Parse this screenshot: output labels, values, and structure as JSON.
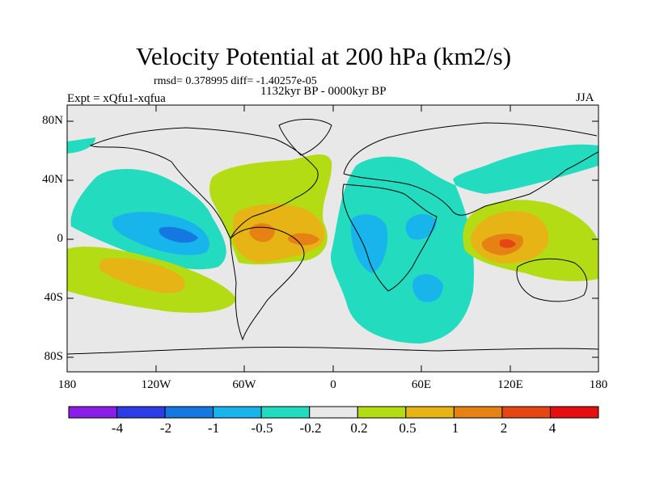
{
  "title": "Velocity Potential at 200 hPa (km2/s)",
  "stats": "rmsd= 0.378995 diff= -1.40257e-05",
  "period": "1132kyr BP - 0000kyr BP",
  "expt": "Expt = xQfu1-xqfua",
  "season": "JJA",
  "lat_ticks": [
    "80N",
    "40N",
    "0",
    "40S",
    "80S"
  ],
  "lon_ticks": [
    "180",
    "120W",
    "60W",
    "0",
    "60E",
    "120E",
    "180"
  ],
  "colorbar": {
    "colors": [
      "#8a1ee8",
      "#2d3ce6",
      "#1478e0",
      "#18b4ec",
      "#23dcc0",
      "#e8e8e8",
      "#b4dc14",
      "#e6b414",
      "#e68214",
      "#e64614",
      "#e60f0f"
    ],
    "labels": [
      "-4",
      "-2",
      "-1",
      "-0.5",
      "-0.2",
      "0.2",
      "0.5",
      "1",
      "2",
      "4"
    ]
  },
  "map_colors": {
    "background": "#e8e8e8",
    "neg_02": "#23dcc0",
    "neg_05": "#18b4ec",
    "neg_1": "#1478e0",
    "pos_02": "#b4dc14",
    "pos_05": "#e6b414",
    "pos_1": "#e68214",
    "pos_2": "#e64614",
    "coast": "#000000"
  }
}
